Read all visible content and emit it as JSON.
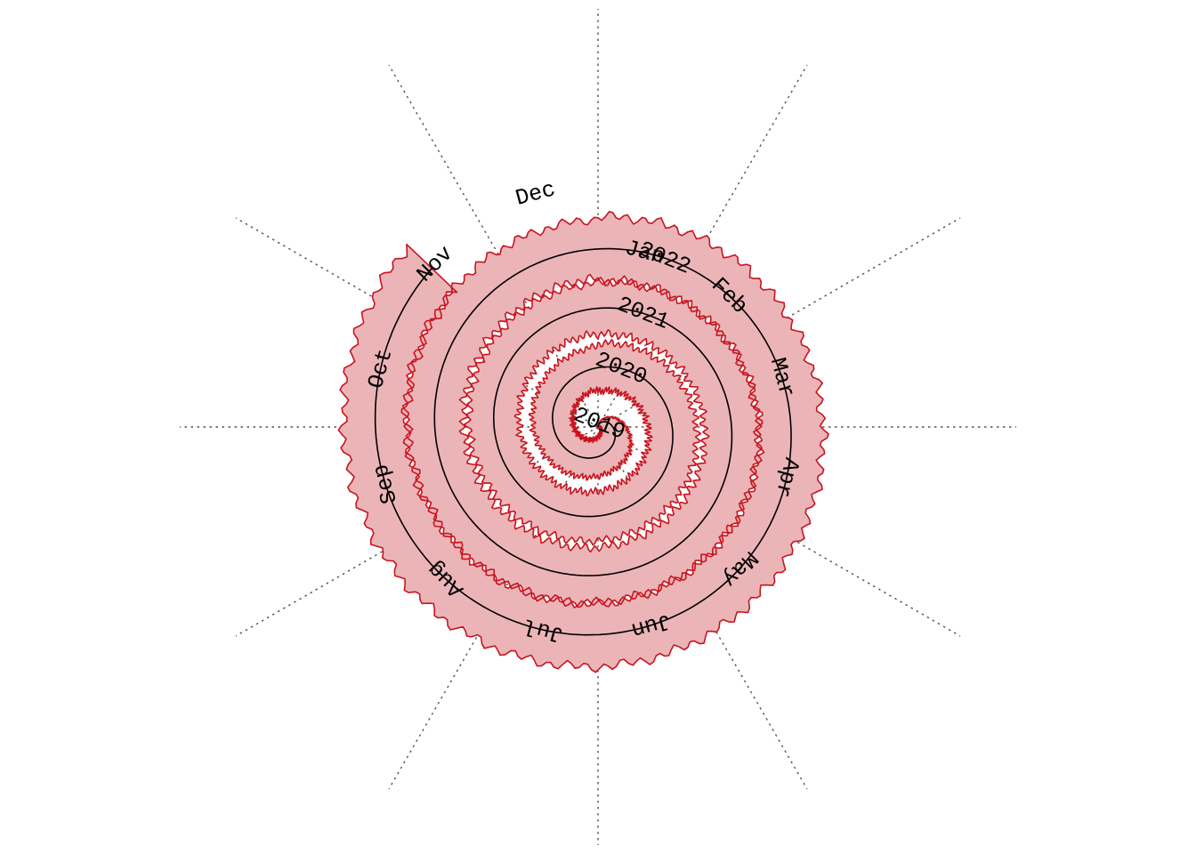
{
  "chart_data": {
    "type": "area",
    "layout": "spiral",
    "direction": "clockwise",
    "start_angle": "top (12 o'clock)",
    "title": "",
    "xlabel": "",
    "ylabel": "",
    "grid": true,
    "spokes": 12,
    "legend": "none",
    "colors": {
      "band_fill": "#ebb5b8",
      "band_edge": "#c8141e",
      "baseline": "#000000",
      "grid": "#555555"
    },
    "x_start": "2019-01-01",
    "x_end": "2022-11-15",
    "month_labels": [
      "Jan",
      "Feb",
      "Mar",
      "Apr",
      "May",
      "Jun",
      "Jul",
      "Aug",
      "Sep",
      "Oct",
      "Nov",
      "Dec"
    ],
    "year_labels": [
      "2019",
      "2020",
      "2021",
      "2022"
    ],
    "series": [
      {
        "values_by_year": [
          {
            "year": "2019",
            "band_width_relative": 0.55
          },
          {
            "year": "2020",
            "band_width_relative": 0.75
          },
          {
            "year": "2021",
            "band_width_relative": 0.82
          },
          {
            "year": "2022",
            "band_width_relative": 1.0
          }
        ]
      }
    ]
  }
}
